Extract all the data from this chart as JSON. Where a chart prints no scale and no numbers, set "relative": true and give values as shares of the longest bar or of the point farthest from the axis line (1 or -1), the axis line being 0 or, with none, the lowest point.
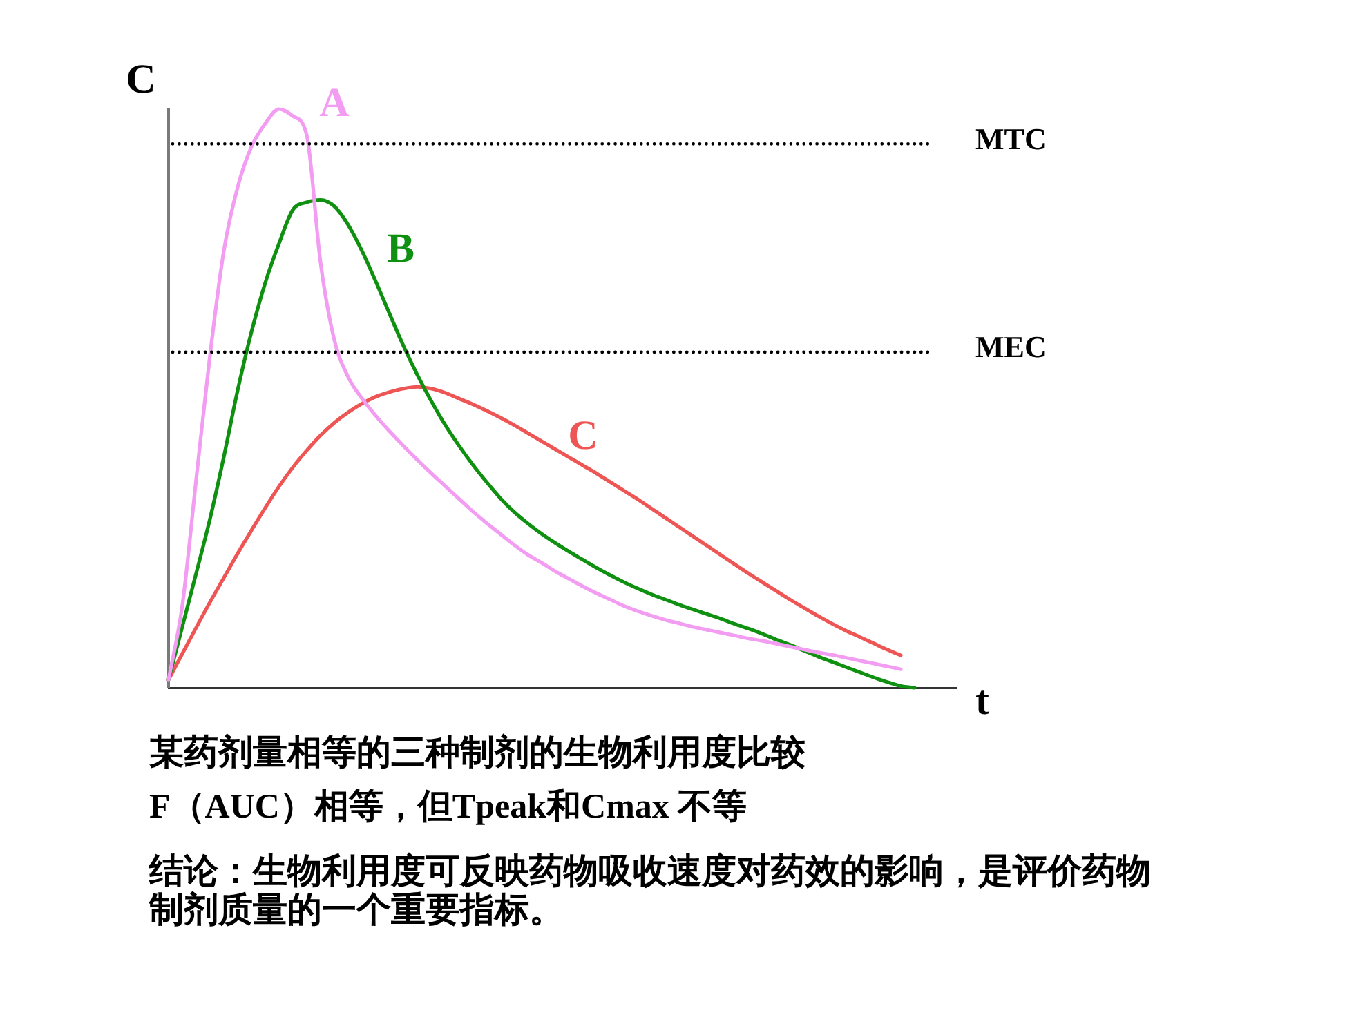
{
  "chart_data": {
    "type": "line",
    "title": "某药剂量相等的三种制剂的生物利用度比较",
    "xlabel": "t",
    "ylabel": "C",
    "annotations": [
      "F（AUC）相等，但Tpeak和Cmax 不等",
      "结论：生物利用度可反映药物吸收速度对药效的影响，是评价药物制剂质量的一个重要指标。"
    ],
    "categories": [
      null,
      null,
      null,
      null,
      null,
      null,
      null,
      null,
      null,
      null,
      null,
      null,
      null,
      null,
      null,
      null,
      null,
      null,
      null,
      null,
      null,
      null,
      null,
      null,
      null,
      null,
      null,
      null,
      null,
      null,
      null,
      null,
      null,
      null,
      null,
      null,
      null,
      null,
      null,
      null,
      null,
      null,
      null,
      null,
      null,
      null,
      null,
      null,
      null,
      null,
      null,
      null,
      null,
      null,
      null,
      null,
      null,
      null
    ],
    "series": [
      {
        "name": "A",
        "color": "#f29cf2",
        "values": [
          0.014,
          0.143,
          0.36,
          0.575,
          0.755,
          0.865,
          0.935,
          0.975,
          1,
          0.988,
          0.955,
          0.735,
          0.601,
          0.537,
          0.5,
          0.47,
          0.443,
          0.418,
          0.394,
          0.371,
          0.349,
          0.327,
          0.305,
          0.285,
          0.266,
          0.247,
          0.23,
          0.216,
          0.201,
          0.188,
          0.175,
          0.163,
          0.152,
          0.141,
          0.132,
          0.124,
          0.117,
          0.111,
          0.105,
          0.1,
          0.095,
          0.09,
          0.085,
          0.081,
          0.076,
          0.071,
          0.066,
          0.061,
          0.057,
          0.052,
          0.047,
          0.042,
          0.037,
          0.032,
          null,
          null,
          null,
          null
        ]
      },
      {
        "name": "B",
        "color": "#109010",
        "values": [
          0.014,
          0.106,
          0.198,
          0.292,
          0.399,
          0.514,
          0.615,
          0.7,
          0.768,
          0.826,
          0.839,
          0.843,
          0.832,
          0.8,
          0.755,
          0.702,
          0.646,
          0.591,
          0.541,
          0.496,
          0.455,
          0.419,
          0.386,
          0.356,
          0.328,
          0.304,
          0.284,
          0.266,
          0.25,
          0.235,
          0.221,
          0.207,
          0.194,
          0.182,
          0.171,
          0.161,
          0.152,
          0.143,
          0.135,
          0.127,
          0.119,
          0.11,
          0.102,
          0.093,
          0.083,
          0.074,
          0.064,
          0.054,
          0.045,
          0.036,
          0.027,
          0.018,
          0.01,
          0.003,
          0,
          null,
          null,
          null
        ]
      },
      {
        "name": "C",
        "color": "#ee5555",
        "values": [
          0.014,
          0.059,
          0.104,
          0.148,
          0.19,
          0.232,
          0.272,
          0.311,
          0.348,
          0.381,
          0.41,
          0.436,
          0.458,
          0.476,
          0.491,
          0.503,
          0.511,
          0.517,
          0.52,
          0.517,
          0.51,
          0.5,
          0.49,
          0.479,
          0.467,
          0.454,
          0.44,
          0.426,
          0.412,
          0.398,
          0.384,
          0.37,
          0.355,
          0.34,
          0.325,
          0.309,
          0.293,
          0.277,
          0.261,
          0.245,
          0.229,
          0.213,
          0.197,
          0.182,
          0.167,
          0.152,
          0.138,
          0.124,
          0.111,
          0.099,
          0.088,
          0.077,
          0.066,
          0.056,
          null,
          null,
          null,
          null
        ]
      }
    ],
    "relative": true,
    "ref_lines": [
      {
        "axis": "y",
        "value": 0.94,
        "label": "MTC",
        "color": "#000000",
        "line_style": "dotted"
      },
      {
        "axis": "y",
        "value": 0.58,
        "label": "MEC",
        "color": "#000000",
        "line_style": "dotted"
      }
    ]
  }
}
